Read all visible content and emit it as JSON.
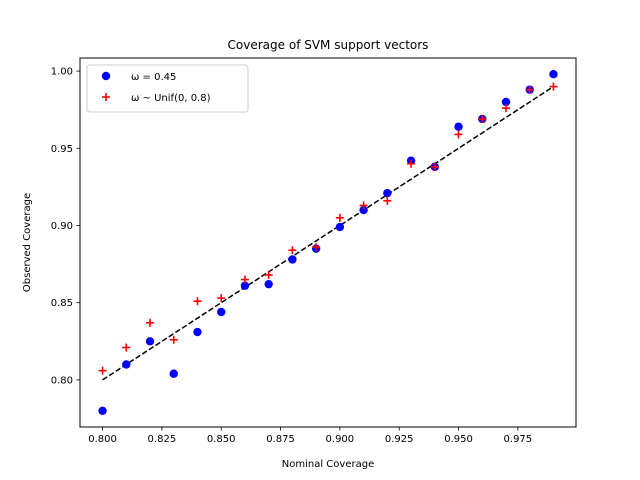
{
  "chart_data": {
    "type": "scatter",
    "title": "Coverage of SVM support vectors",
    "xlabel": "Nominal Coverage",
    "ylabel": "Observed Coverage",
    "xlim": [
      0.7905,
      0.9995
    ],
    "ylim": [
      0.7695,
      1.0085
    ],
    "xticks": [
      0.8,
      0.825,
      0.85,
      0.875,
      0.9,
      0.925,
      0.95,
      0.975
    ],
    "xtick_labels": [
      "0.800",
      "0.825",
      "0.850",
      "0.875",
      "0.900",
      "0.925",
      "0.950",
      "0.975"
    ],
    "yticks": [
      0.8,
      0.85,
      0.9,
      0.95,
      1.0
    ],
    "ytick_labels": [
      "0.80",
      "0.85",
      "0.90",
      "0.95",
      "1.00"
    ],
    "grid": false,
    "legend_position": "top-left",
    "reference_line": {
      "style": "dashed",
      "color": "#000000",
      "x": [
        0.8,
        0.99
      ],
      "y": [
        0.8,
        0.99
      ]
    },
    "series": [
      {
        "name": "ω = 0.45",
        "marker": "circle",
        "color": "#0000ff",
        "x": [
          0.8,
          0.81,
          0.82,
          0.83,
          0.84,
          0.85,
          0.86,
          0.87,
          0.88,
          0.89,
          0.9,
          0.91,
          0.92,
          0.93,
          0.94,
          0.95,
          0.96,
          0.97,
          0.98,
          0.99
        ],
        "y": [
          0.78,
          0.81,
          0.825,
          0.804,
          0.831,
          0.844,
          0.861,
          0.862,
          0.878,
          0.885,
          0.899,
          0.91,
          0.921,
          0.942,
          0.938,
          0.964,
          0.969,
          0.98,
          0.988,
          0.998
        ]
      },
      {
        "name": "ω ~ Unif(0, 0.8)",
        "marker": "plus",
        "color": "#ff0000",
        "x": [
          0.8,
          0.81,
          0.82,
          0.83,
          0.84,
          0.85,
          0.86,
          0.87,
          0.88,
          0.89,
          0.9,
          0.91,
          0.92,
          0.93,
          0.94,
          0.95,
          0.96,
          0.97,
          0.98,
          0.99
        ],
        "y": [
          0.806,
          0.821,
          0.837,
          0.826,
          0.851,
          0.853,
          0.865,
          0.868,
          0.884,
          0.886,
          0.905,
          0.913,
          0.916,
          0.94,
          0.938,
          0.959,
          0.969,
          0.976,
          0.988,
          0.99
        ]
      }
    ]
  }
}
